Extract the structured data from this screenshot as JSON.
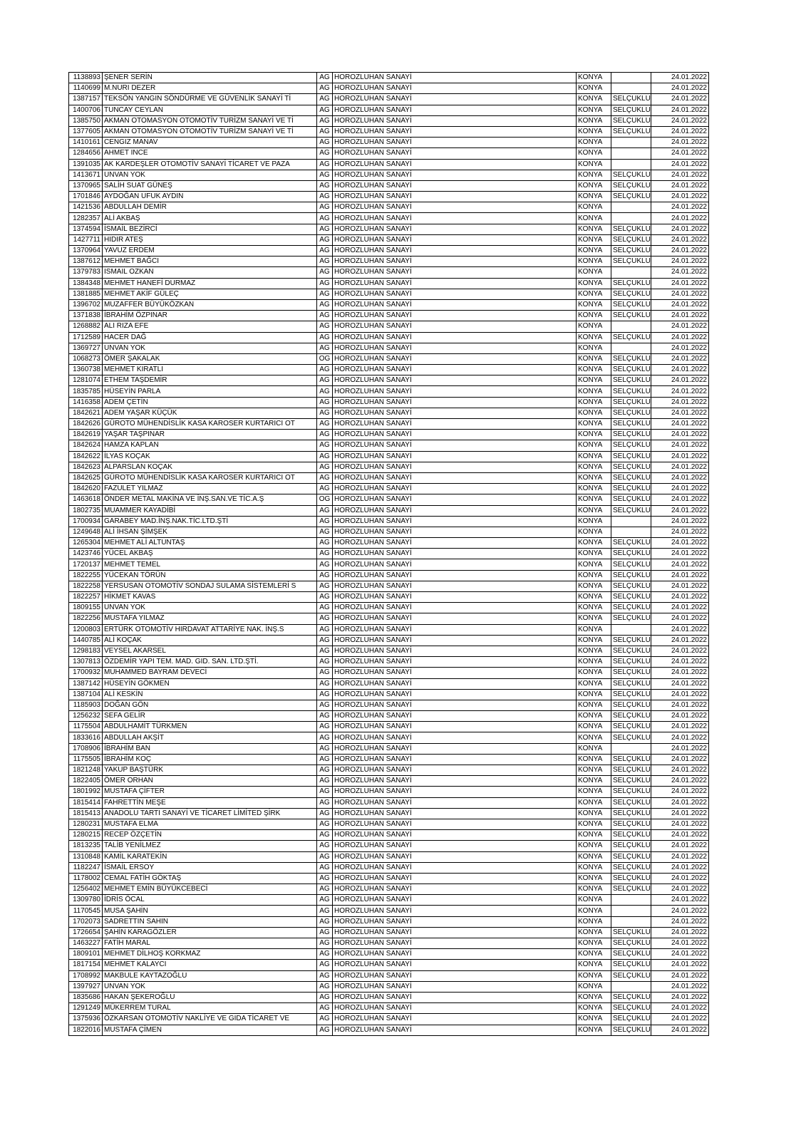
{
  "table": {
    "rows": [
      [
        "1138893",
        "ŞENER SERİN",
        "AG",
        "HOROZLUHAN SANAYİ",
        "KONYA",
        null,
        "24.01.2022"
      ],
      [
        "1140699",
        "M.NURI DEZER",
        "AG",
        "HOROZLUHAN SANAYİ",
        "KONYA",
        null,
        "24.01.2022"
      ],
      [
        "1387157",
        "TEKSÖN YANGIN SÖNDÜRME VE GÜVENLİK SANAYİ Tİ",
        "AG",
        "HOROZLUHAN SANAYİ",
        "KONYA",
        "SELÇUKLU",
        "24.01.2022"
      ],
      [
        "1400706",
        "TUNCAY CEYLAN",
        "AG",
        "HOROZLUHAN SANAYİ",
        "KONYA",
        "SELÇUKLU",
        "24.01.2022"
      ],
      [
        "1385750",
        "AKMAN OTOMASYON OTOMOTİV TURİZM SANAYİ VE Tİ",
        "AG",
        "HOROZLUHAN SANAYİ",
        "KONYA",
        "SELÇUKLU",
        "24.01.2022"
      ],
      [
        "1377605",
        "AKMAN OTOMASYON OTOMOTİV TURİZM SANAYİ VE Tİ",
        "AG",
        "HOROZLUHAN SANAYİ",
        "KONYA",
        "SELÇUKLU",
        "24.01.2022"
      ],
      [
        "1410161",
        "CENGIZ MANAV",
        "AG",
        "HOROZLUHAN SANAYİ",
        "KONYA",
        null,
        "24.01.2022"
      ],
      [
        "1284656",
        "AHMET INCE",
        "AG",
        "HOROZLUHAN SANAYİ",
        "KONYA",
        null,
        "24.01.2022"
      ],
      [
        "1391035",
        "AK KARDEŞLER OTOMOTİV SANAYİ TİCARET VE PAZA",
        "AG",
        "HOROZLUHAN SANAYİ",
        "KONYA",
        null,
        "24.01.2022"
      ],
      [
        "1413671",
        "UNVAN YOK",
        "AG",
        "HOROZLUHAN SANAYİ",
        "KONYA",
        "SELÇUKLU",
        "24.01.2022"
      ],
      [
        "1370965",
        "SALİH SUAT GÜNEŞ",
        "AG",
        "HOROZLUHAN SANAYİ",
        "KONYA",
        "SELÇUKLU",
        "24.01.2022"
      ],
      [
        "1701846",
        "AYDOĞAN UFUK AYDIN",
        "AG",
        "HOROZLUHAN SANAYİ",
        "KONYA",
        "SELÇUKLU",
        "24.01.2022"
      ],
      [
        "1421536",
        "ABDULLAH DEMİR",
        "AG",
        "HOROZLUHAN SANAYİ",
        "KONYA",
        null,
        "24.01.2022"
      ],
      [
        "1282357",
        "ALİ AKBAŞ",
        "AG",
        "HOROZLUHAN SANAYİ",
        "KONYA",
        null,
        "24.01.2022"
      ],
      [
        "1374594",
        "İSMAİL BEZİRCİ",
        "AG",
        "HOROZLUHAN SANAYİ",
        "KONYA",
        "SELÇUKLU",
        "24.01.2022"
      ],
      [
        "1427711",
        "HIDIR ATEŞ",
        "AG",
        "HOROZLUHAN SANAYİ",
        "KONYA",
        "SELÇUKLU",
        "24.01.2022"
      ],
      [
        "1370964",
        "YAVUZ ERDEM",
        "AG",
        "HOROZLUHAN SANAYİ",
        "KONYA",
        "SELÇUKLU",
        "24.01.2022"
      ],
      [
        "1387612",
        "MEHMET BAĞCI",
        "AG",
        "HOROZLUHAN SANAYİ",
        "KONYA",
        "SELÇUKLU",
        "24.01.2022"
      ],
      [
        "1379783",
        "ISMAIL OZKAN",
        "AG",
        "HOROZLUHAN SANAYİ",
        "KONYA",
        null,
        "24.01.2022"
      ],
      [
        "1384348",
        "MEHMET HANEFİ DURMAZ",
        "AG",
        "HOROZLUHAN SANAYİ",
        "KONYA",
        "SELÇUKLU",
        "24.01.2022"
      ],
      [
        "1381885",
        "MEHMET AKİF GÜLEÇ",
        "AG",
        "HOROZLUHAN SANAYİ",
        "KONYA",
        "SELÇUKLU",
        "24.01.2022"
      ],
      [
        "1396702",
        "MUZAFFER BÜYÜKÖZKAN",
        "AG",
        "HOROZLUHAN SANAYİ",
        "KONYA",
        "SELÇUKLU",
        "24.01.2022"
      ],
      [
        "1371838",
        "İBRAHİM ÖZPINAR",
        "AG",
        "HOROZLUHAN SANAYİ",
        "KONYA",
        "SELÇUKLU",
        "24.01.2022"
      ],
      [
        "1268882",
        "ALI RIZA EFE",
        "AG",
        "HOROZLUHAN SANAYİ",
        "KONYA",
        null,
        "24.01.2022"
      ],
      [
        "1712589",
        "HACER DAĞ",
        "AG",
        "HOROZLUHAN SANAYİ",
        "KONYA",
        "SELÇUKLU",
        "24.01.2022"
      ],
      [
        "1369727",
        "UNVAN YOK",
        "AG",
        "HOROZLUHAN SANAYİ",
        "KONYA",
        null,
        "24.01.2022"
      ],
      [
        "1068273",
        "ÖMER ŞAKALAK",
        "OG",
        "HOROZLUHAN SANAYİ",
        "KONYA",
        "SELÇUKLU",
        "24.01.2022"
      ],
      [
        "1360738",
        "MEHMET KIRATLI",
        "AG",
        "HOROZLUHAN SANAYİ",
        "KONYA",
        "SELÇUKLU",
        "24.01.2022"
      ],
      [
        "1281074",
        "ETHEM TAŞDEMİR",
        "AG",
        "HOROZLUHAN SANAYİ",
        "KONYA",
        "SELÇUKLU",
        "24.01.2022"
      ],
      [
        "1835785",
        "HÜSEYİN PARLA",
        "AG",
        "HOROZLUHAN SANAYİ",
        "KONYA",
        "SELÇUKLU",
        "24.01.2022"
      ],
      [
        "1416358",
        "ADEM ÇETİN",
        "AG",
        "HOROZLUHAN SANAYİ",
        "KONYA",
        "SELÇUKLU",
        "24.01.2022"
      ],
      [
        "1842621",
        "ADEM YAŞAR KÜÇÜK",
        "AG",
        "HOROZLUHAN SANAYİ",
        "KONYA",
        "SELÇUKLU",
        "24.01.2022"
      ],
      [
        "1842626",
        "GÜROTO MÜHENDİSLİK KASA KAROSER KURTARICI OT",
        "AG",
        "HOROZLUHAN SANAYİ",
        "KONYA",
        "SELÇUKLU",
        "24.01.2022"
      ],
      [
        "1842619",
        "YAŞAR TAŞPINAR",
        "AG",
        "HOROZLUHAN SANAYİ",
        "KONYA",
        "SELÇUKLU",
        "24.01.2022"
      ],
      [
        "1842624",
        "HAMZA KAPLAN",
        "AG",
        "HOROZLUHAN SANAYİ",
        "KONYA",
        "SELÇUKLU",
        "24.01.2022"
      ],
      [
        "1842622",
        "İLYAS KOÇAK",
        "AG",
        "HOROZLUHAN SANAYİ",
        "KONYA",
        "SELÇUKLU",
        "24.01.2022"
      ],
      [
        "1842623",
        "ALPARSLAN KOÇAK",
        "AG",
        "HOROZLUHAN SANAYİ",
        "KONYA",
        "SELÇUKLU",
        "24.01.2022"
      ],
      [
        "1842625",
        "GÜROTO MÜHENDİSLİK KASA KAROSER KURTARICI OT",
        "AG",
        "HOROZLUHAN SANAYİ",
        "KONYA",
        "SELÇUKLU",
        "24.01.2022"
      ],
      [
        "1842620",
        "FAZULET YILMAZ",
        "AG",
        "HOROZLUHAN SANAYİ",
        "KONYA",
        "SELÇUKLU",
        "24.01.2022"
      ],
      [
        "1463618",
        "ÖNDER METAL MAKİNA VE İNŞ.SAN.VE TİC.A.Ş",
        "OG",
        "HOROZLUHAN SANAYİ",
        "KONYA",
        "SELÇUKLU",
        "24.01.2022"
      ],
      [
        "1802735",
        "MUAMMER KAYADİBİ",
        "AG",
        "HOROZLUHAN SANAYİ",
        "KONYA",
        "SELÇUKLU",
        "24.01.2022"
      ],
      [
        "1700934",
        "GARABEY MAD.İNŞ.NAK.TİC.LTD.ŞTİ",
        "AG",
        "HOROZLUHAN SANAYİ",
        "KONYA",
        null,
        "24.01.2022"
      ],
      [
        "1249648",
        "ALİ İHSAN ŞİMŞEK",
        "AG",
        "HOROZLUHAN SANAYİ",
        "KONYA",
        null,
        "24.01.2022"
      ],
      [
        "1265304",
        "MEHMET ALİ ALTUNTAŞ",
        "AG",
        "HOROZLUHAN SANAYİ",
        "KONYA",
        "SELÇUKLU",
        "24.01.2022"
      ],
      [
        "1423746",
        "YÜCEL AKBAŞ",
        "AG",
        "HOROZLUHAN SANAYİ",
        "KONYA",
        "SELÇUKLU",
        "24.01.2022"
      ],
      [
        "1720137",
        "MEHMET TEMEL",
        "AG",
        "HOROZLUHAN SANAYİ",
        "KONYA",
        "SELÇUKLU",
        "24.01.2022"
      ],
      [
        "1822255",
        "YÜCEKAN TÖRÜN",
        "AG",
        "HOROZLUHAN SANAYİ",
        "KONYA",
        "SELÇUKLU",
        "24.01.2022"
      ],
      [
        "1822258",
        "YERSUSAN OTOMOTİV SONDAJ SULAMA SİSTEMLERİ S",
        "AG",
        "HOROZLUHAN SANAYİ",
        "KONYA",
        "SELÇUKLU",
        "24.01.2022"
      ],
      [
        "1822257",
        "HİKMET KAVAS",
        "AG",
        "HOROZLUHAN SANAYİ",
        "KONYA",
        "SELÇUKLU",
        "24.01.2022"
      ],
      [
        "1809155",
        "UNVAN YOK",
        "AG",
        "HOROZLUHAN SANAYİ",
        "KONYA",
        "SELÇUKLU",
        "24.01.2022"
      ],
      [
        "1822256",
        "MUSTAFA YILMAZ",
        "AG",
        "HOROZLUHAN SANAYİ",
        "KONYA",
        "SELÇUKLU",
        "24.01.2022"
      ],
      [
        "1200803",
        "ERTÜRK OTOMOTİV HIRDAVAT ATTARİYE NAK. İNŞ.S",
        "AG",
        "HOROZLUHAN SANAYİ",
        "KONYA",
        null,
        "24.01.2022"
      ],
      [
        "1440785",
        "ALİ KOÇAK",
        "AG",
        "HOROZLUHAN SANAYİ",
        "KONYA",
        "SELÇUKLU",
        "24.01.2022"
      ],
      [
        "1298183",
        "VEYSEL AKARSEL",
        "AG",
        "HOROZLUHAN SANAYİ",
        "KONYA",
        "SELÇUKLU",
        "24.01.2022"
      ],
      [
        "1307813",
        "ÖZDEMİR YAPI TEM. MAD. GID. SAN. LTD.ŞTİ.",
        "AG",
        "HOROZLUHAN SANAYİ",
        "KONYA",
        "SELÇUKLU",
        "24.01.2022"
      ],
      [
        "1700932",
        "MUHAMMED BAYRAM DEVECİ",
        "AG",
        "HOROZLUHAN SANAYİ",
        "KONYA",
        "SELÇUKLU",
        "24.01.2022"
      ],
      [
        "1387142",
        "HÜSEYİN GÖKMEN",
        "AG",
        "HOROZLUHAN SANAYİ",
        "KONYA",
        "SELÇUKLU",
        "24.01.2022"
      ],
      [
        "1387104",
        "ALİ KESKİN",
        "AG",
        "HOROZLUHAN SANAYİ",
        "KONYA",
        "SELÇUKLU",
        "24.01.2022"
      ],
      [
        "1185903",
        "DOĞAN GÖN",
        "AG",
        "HOROZLUHAN SANAYİ",
        "KONYA",
        "SELÇUKLU",
        "24.01.2022"
      ],
      [
        "1256232",
        "SEFA GELİR",
        "AG",
        "HOROZLUHAN SANAYİ",
        "KONYA",
        "SELÇUKLU",
        "24.01.2022"
      ],
      [
        "1175504",
        "ABDULHAMİT TÜRKMEN",
        "AG",
        "HOROZLUHAN SANAYİ",
        "KONYA",
        "SELÇUKLU",
        "24.01.2022"
      ],
      [
        "1833616",
        "ABDULLAH AKŞİT",
        "AG",
        "HOROZLUHAN SANAYİ",
        "KONYA",
        "SELÇUKLU",
        "24.01.2022"
      ],
      [
        "1708906",
        "İBRAHİM BAN",
        "AG",
        "HOROZLUHAN SANAYİ",
        "KONYA",
        null,
        "24.01.2022"
      ],
      [
        "1175505",
        "İBRAHİM KOÇ",
        "AG",
        "HOROZLUHAN SANAYİ",
        "KONYA",
        "SELÇUKLU",
        "24.01.2022"
      ],
      [
        "1821248",
        "YAKUP BAŞTÜRK",
        "AG",
        "HOROZLUHAN SANAYİ",
        "KONYA",
        "SELÇUKLU",
        "24.01.2022"
      ],
      [
        "1822405",
        "ÖMER ORHAN",
        "AG",
        "HOROZLUHAN SANAYİ",
        "KONYA",
        "SELÇUKLU",
        "24.01.2022"
      ],
      [
        "1801992",
        "MUSTAFA ÇİFTER",
        "AG",
        "HOROZLUHAN SANAYİ",
        "KONYA",
        "SELÇUKLU",
        "24.01.2022"
      ],
      [
        "1815414",
        "FAHRETTİN MEŞE",
        "AG",
        "HOROZLUHAN SANAYİ",
        "KONYA",
        "SELÇUKLU",
        "24.01.2022"
      ],
      [
        "1815413",
        "ANADOLU TARTI SANAYİ VE TİCARET LİMİTED ŞİRK",
        "AG",
        "HOROZLUHAN SANAYİ",
        "KONYA",
        "SELÇUKLU",
        "24.01.2022"
      ],
      [
        "1280231",
        "MUSTAFA ELMA",
        "AG",
        "HOROZLUHAN SANAYİ",
        "KONYA",
        "SELÇUKLU",
        "24.01.2022"
      ],
      [
        "1280215",
        "RECEP ÖZÇETİN",
        "AG",
        "HOROZLUHAN SANAYİ",
        "KONYA",
        "SELÇUKLU",
        "24.01.2022"
      ],
      [
        "1813235",
        "TALİB YENİLMEZ",
        "AG",
        "HOROZLUHAN SANAYİ",
        "KONYA",
        "SELÇUKLU",
        "24.01.2022"
      ],
      [
        "1310848",
        "KAMİL KARATEKİN",
        "AG",
        "HOROZLUHAN SANAYİ",
        "KONYA",
        "SELÇUKLU",
        "24.01.2022"
      ],
      [
        "1182247",
        "İSMAİL ERSOY",
        "AG",
        "HOROZLUHAN SANAYİ",
        "KONYA",
        "SELÇUKLU",
        "24.01.2022"
      ],
      [
        "1178002",
        "CEMAL FATİH GÖKTAŞ",
        "AG",
        "HOROZLUHAN SANAYİ",
        "KONYA",
        "SELÇUKLU",
        "24.01.2022"
      ],
      [
        "1256402",
        "MEHMET EMİN BÜYÜKCEBECİ",
        "AG",
        "HOROZLUHAN SANAYİ",
        "KONYA",
        "SELÇUKLU",
        "24.01.2022"
      ],
      [
        "1309780",
        "İDRİS ÖCAL",
        "AG",
        "HOROZLUHAN SANAYİ",
        "KONYA",
        null,
        "24.01.2022"
      ],
      [
        "1170545",
        "MUSA ŞAHİN",
        "AG",
        "HOROZLUHAN SANAYİ",
        "KONYA",
        null,
        "24.01.2022"
      ],
      [
        "1702073",
        "SADRETTIN SAHIN",
        "AG",
        "HOROZLUHAN SANAYİ",
        "KONYA",
        null,
        "24.01.2022"
      ],
      [
        "1726654",
        "ŞAHİN KARAGÖZLER",
        "AG",
        "HOROZLUHAN SANAYİ",
        "KONYA",
        "SELÇUKLU",
        "24.01.2022"
      ],
      [
        "1463227",
        "FATİH MARAL",
        "AG",
        "HOROZLUHAN SANAYİ",
        "KONYA",
        "SELÇUKLU",
        "24.01.2022"
      ],
      [
        "1809101",
        "MEHMET DİLHOŞ KORKMAZ",
        "AG",
        "HOROZLUHAN SANAYİ",
        "KONYA",
        "SELÇUKLU",
        "24.01.2022"
      ],
      [
        "1817154",
        "MEHMET KALAYCI",
        "AG",
        "HOROZLUHAN SANAYİ",
        "KONYA",
        "SELÇUKLU",
        "24.01.2022"
      ],
      [
        "1708992",
        "MAKBULE KAYTAZOĞLU",
        "AG",
        "HOROZLUHAN SANAYİ",
        "KONYA",
        "SELÇUKLU",
        "24.01.2022"
      ],
      [
        "1397927",
        "UNVAN YOK",
        "AG",
        "HOROZLUHAN SANAYİ",
        "KONYA",
        null,
        "24.01.2022"
      ],
      [
        "1835686",
        "HAKAN ŞEKEROĞLU",
        "AG",
        "HOROZLUHAN SANAYİ",
        "KONYA",
        "SELÇUKLU",
        "24.01.2022"
      ],
      [
        "1291249",
        "MÜKERREM TURAL",
        "AG",
        "HOROZLUHAN SANAYİ",
        "KONYA",
        "SELÇUKLU",
        "24.01.2022"
      ],
      [
        "1375936",
        "ÖZKARSAN OTOMOTİV NAKLİYE VE GIDA TİCARET VE",
        "AG",
        "HOROZLUHAN SANAYİ",
        "KONYA",
        "SELÇUKLU",
        "24.01.2022"
      ],
      [
        "1822016",
        "MUSTAFA ÇİMEN",
        "AG",
        "HOROZLUHAN SANAYİ",
        "KONYA",
        "SELÇUKLU",
        "24.01.2022"
      ]
    ]
  }
}
